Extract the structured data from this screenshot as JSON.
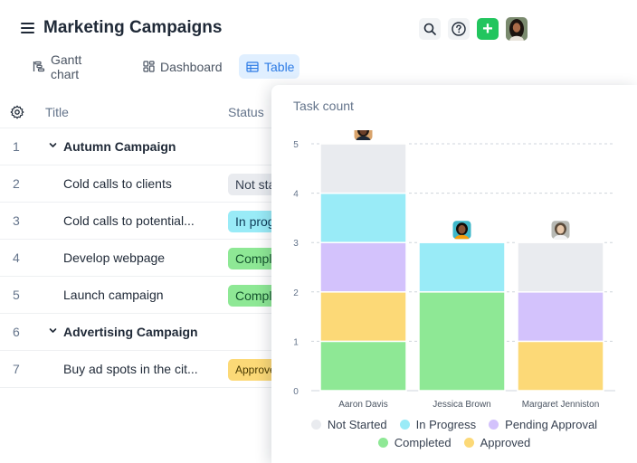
{
  "header": {
    "title": "Marketing Campaigns",
    "add_label": "+"
  },
  "tabs": [
    {
      "label": "Gantt chart",
      "icon": "gantt-icon",
      "active": false
    },
    {
      "label": "Dashboard",
      "icon": "dashboard-icon",
      "active": false
    },
    {
      "label": "Table",
      "icon": "table-icon",
      "active": true
    }
  ],
  "table": {
    "columns": [
      "Title",
      "Status"
    ],
    "rows": [
      {
        "num": "1",
        "title": "Autumn Campaign",
        "group": true
      },
      {
        "num": "2",
        "title": "Cold calls to clients",
        "status": "Not started",
        "status_color": "#e9ebef",
        "status_text_color": "#374151"
      },
      {
        "num": "3",
        "title": "Cold calls to potential...",
        "status": "In progress",
        "status_color": "#99ebf7",
        "status_text_color": "#0f3b57"
      },
      {
        "num": "4",
        "title": "Develop webpage",
        "status": "Completed",
        "status_color": "#8ee895",
        "status_text_color": "#14532d"
      },
      {
        "num": "5",
        "title": "Launch campaign",
        "status": "Completed",
        "status_color": "#8ee895",
        "status_text_color": "#14532d"
      },
      {
        "num": "6",
        "title": "Advertising Campaign",
        "group": true
      },
      {
        "num": "7",
        "title": "Buy ad spots in the cit...",
        "status": "Approved",
        "status_color": "#fcd977",
        "status_text_color": "#4a3a00",
        "small": true
      }
    ]
  },
  "chart_data": {
    "type": "bar",
    "stacked": true,
    "title": "Task count",
    "categories": [
      "Aaron Davis",
      "Jessica Brown",
      "Margaret Jenniston"
    ],
    "series": [
      {
        "name": "Completed",
        "color": "#8ee895",
        "values": [
          1,
          2,
          0
        ]
      },
      {
        "name": "Approved",
        "color": "#fcd977",
        "values": [
          1,
          0,
          1
        ]
      },
      {
        "name": "Pending Approval",
        "color": "#d3c2fc",
        "values": [
          1,
          0,
          1
        ]
      },
      {
        "name": "In Progress",
        "color": "#99ebf7",
        "values": [
          1,
          1,
          0
        ]
      },
      {
        "name": "Not Started",
        "color": "#e9ebef",
        "values": [
          1,
          0,
          1
        ]
      }
    ],
    "ylim": [
      0,
      5
    ],
    "yticks": [
      "0",
      "1",
      "2",
      "3",
      "4",
      "5"
    ],
    "grid": true,
    "legend_position": "bottom",
    "legend_rows": [
      [
        "Not Started",
        "In Progress",
        "Pending Approval"
      ],
      [
        "Completed",
        "Approved"
      ]
    ]
  }
}
